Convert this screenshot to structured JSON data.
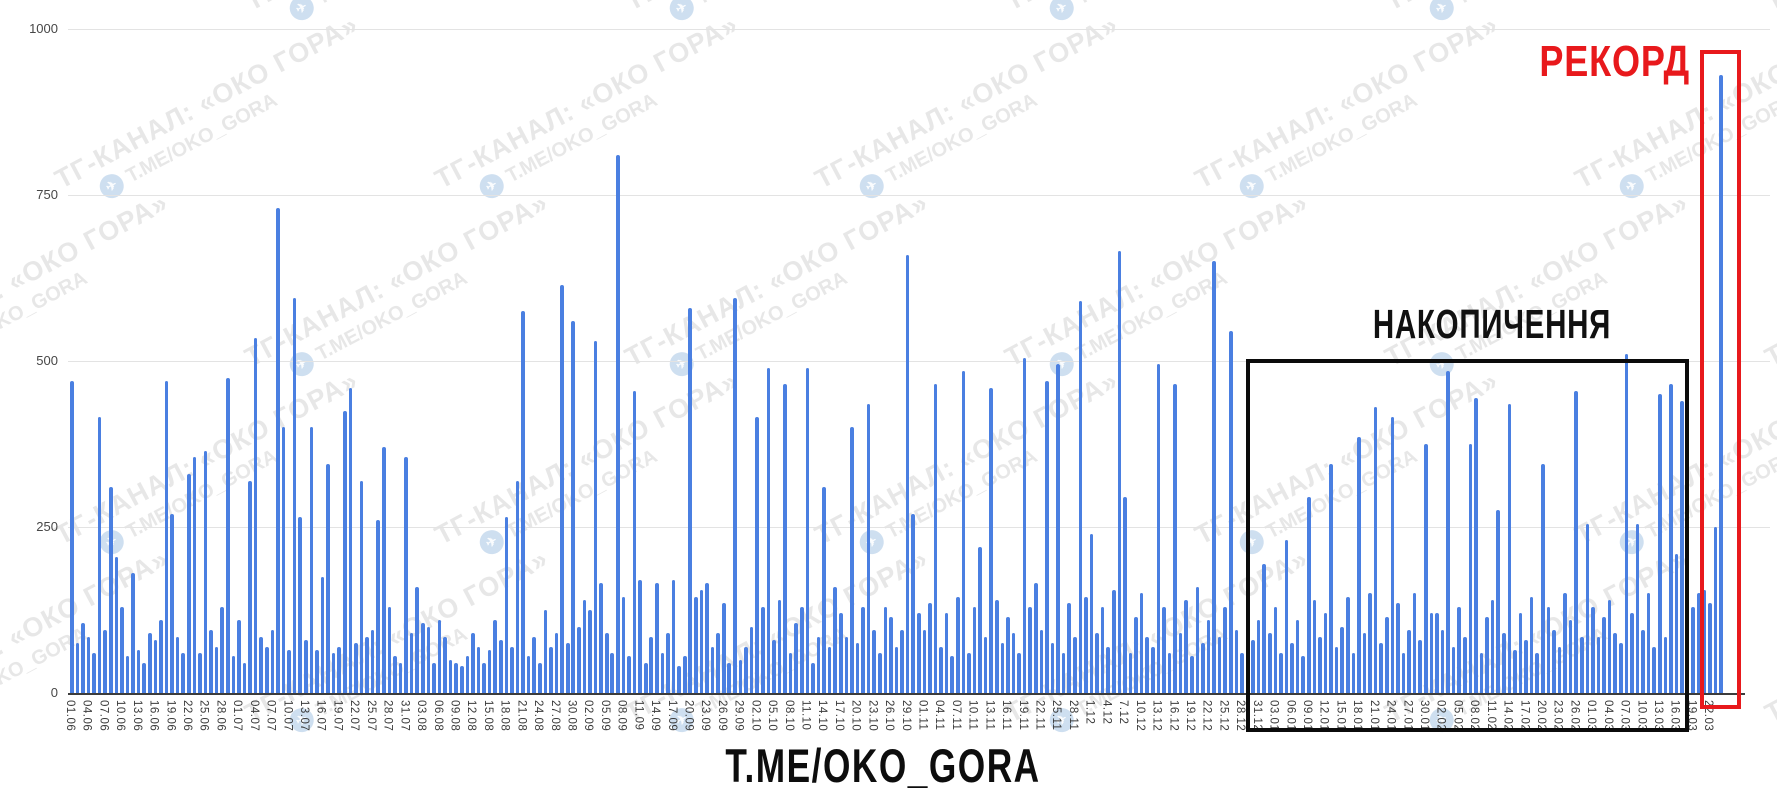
{
  "chart_data": {
    "type": "bar",
    "title": "",
    "xlabel": "",
    "ylabel": "",
    "ylim": [
      0,
      1000
    ],
    "y_ticks": [
      0,
      250,
      500,
      750,
      1000
    ],
    "grid": true,
    "bar_color": "#4a7fe1",
    "x_tick_every": 3,
    "x_tick_labels": [
      "01.06",
      "04.06",
      "07.06",
      "10.06",
      "13.06",
      "16.06",
      "19.06",
      "22.06",
      "25.06",
      "28.06",
      "01.07",
      "04.07",
      "07.07",
      "10.07",
      "13.07",
      "16.07",
      "19.07",
      "22.07",
      "25.07",
      "28.07",
      "31.07",
      "03.08",
      "06.08",
      "09.08",
      "12.08",
      "15.08",
      "18.08",
      "21.08",
      "24.08",
      "27.08",
      "30.08",
      "02.09",
      "05.09",
      "08.09",
      "11.09",
      "14.09",
      "17.09",
      "20.09",
      "23.09",
      "26.09",
      "29.09",
      "02.10",
      "05.10",
      "08.10",
      "11.10",
      "14.10",
      "17.10",
      "20.10",
      "23.10",
      "26.10",
      "29.10",
      "01.11",
      "04.11",
      "07.11",
      "10.11",
      "13.11",
      "16.11",
      "19.11",
      "22.11",
      "25.11",
      "28.11",
      "1.12",
      "4.12",
      "7.12",
      "10.12",
      "13.12",
      "16.12",
      "19.12",
      "22.12",
      "25.12",
      "28.12",
      "31.12",
      "03.01",
      "06.01",
      "09.01",
      "12.01",
      "15.01",
      "18.01",
      "21.01",
      "24.01",
      "27.01",
      "30.01",
      "02.02",
      "05.02",
      "08.02",
      "11.02",
      "14.02",
      "17.02",
      "20.02",
      "23.02",
      "26.02",
      "01.03",
      "04.03",
      "07.03",
      "10.03",
      "13.03",
      "16.03",
      "19.03",
      "22.03"
    ],
    "values": [
      470,
      75,
      105,
      85,
      60,
      415,
      95,
      310,
      205,
      130,
      55,
      180,
      65,
      45,
      90,
      80,
      110,
      470,
      270,
      85,
      60,
      330,
      355,
      60,
      365,
      95,
      70,
      130,
      475,
      55,
      110,
      45,
      320,
      535,
      85,
      70,
      95,
      730,
      400,
      65,
      595,
      265,
      80,
      400,
      65,
      175,
      345,
      60,
      70,
      425,
      460,
      75,
      320,
      85,
      95,
      260,
      370,
      130,
      55,
      45,
      355,
      90,
      160,
      105,
      100,
      45,
      110,
      85,
      50,
      45,
      40,
      55,
      90,
      70,
      45,
      65,
      110,
      80,
      265,
      70,
      320,
      575,
      55,
      85,
      45,
      125,
      70,
      90,
      615,
      75,
      560,
      100,
      140,
      125,
      530,
      165,
      90,
      60,
      810,
      145,
      55,
      455,
      170,
      45,
      85,
      165,
      60,
      90,
      170,
      40,
      55,
      580,
      145,
      155,
      165,
      70,
      90,
      135,
      45,
      595,
      50,
      70,
      100,
      415,
      130,
      490,
      80,
      140,
      465,
      60,
      105,
      130,
      490,
      45,
      85,
      310,
      70,
      160,
      120,
      85,
      400,
      75,
      130,
      435,
      95,
      60,
      130,
      115,
      70,
      95,
      660,
      270,
      120,
      95,
      135,
      465,
      70,
      120,
      55,
      145,
      485,
      60,
      130,
      220,
      85,
      460,
      140,
      75,
      115,
      90,
      60,
      505,
      130,
      165,
      95,
      470,
      75,
      495,
      60,
      135,
      85,
      590,
      145,
      240,
      90,
      130,
      70,
      155,
      665,
      295,
      60,
      115,
      150,
      85,
      70,
      495,
      130,
      60,
      465,
      90,
      140,
      55,
      160,
      75,
      110,
      650,
      85,
      130,
      545,
      95,
      60,
      135,
      80,
      110,
      195,
      90,
      130,
      60,
      230,
      75,
      110,
      55,
      295,
      140,
      85,
      120,
      345,
      70,
      100,
      145,
      60,
      385,
      90,
      150,
      430,
      75,
      115,
      415,
      135,
      60,
      95,
      150,
      80,
      375,
      120,
      120,
      95,
      485,
      70,
      130,
      85,
      375,
      445,
      60,
      115,
      140,
      275,
      90,
      435,
      65,
      120,
      80,
      145,
      60,
      345,
      130,
      95,
      70,
      150,
      110,
      455,
      85,
      255,
      130,
      85,
      115,
      140,
      90,
      75,
      510,
      120,
      255,
      95,
      150,
      70,
      450,
      85,
      465,
      210,
      440,
      145,
      130,
      150,
      155,
      135,
      250,
      930
    ],
    "record_value": 930,
    "legend": null
  },
  "annotations": {
    "accumulation_label": "НАКОПИЧЕННЯ",
    "record_label": "РЕКОРД",
    "record_color": "#e8191c",
    "accumulation_box_color": "#0b0b0b"
  },
  "footer": {
    "text": "T.ME/OKO_GORA"
  },
  "watermark": {
    "line1": "ТГ-КАНАЛ: «ОКО ГОРА»",
    "line2": "T.ME/OKO_GORA",
    "plane_icon": "✈"
  }
}
